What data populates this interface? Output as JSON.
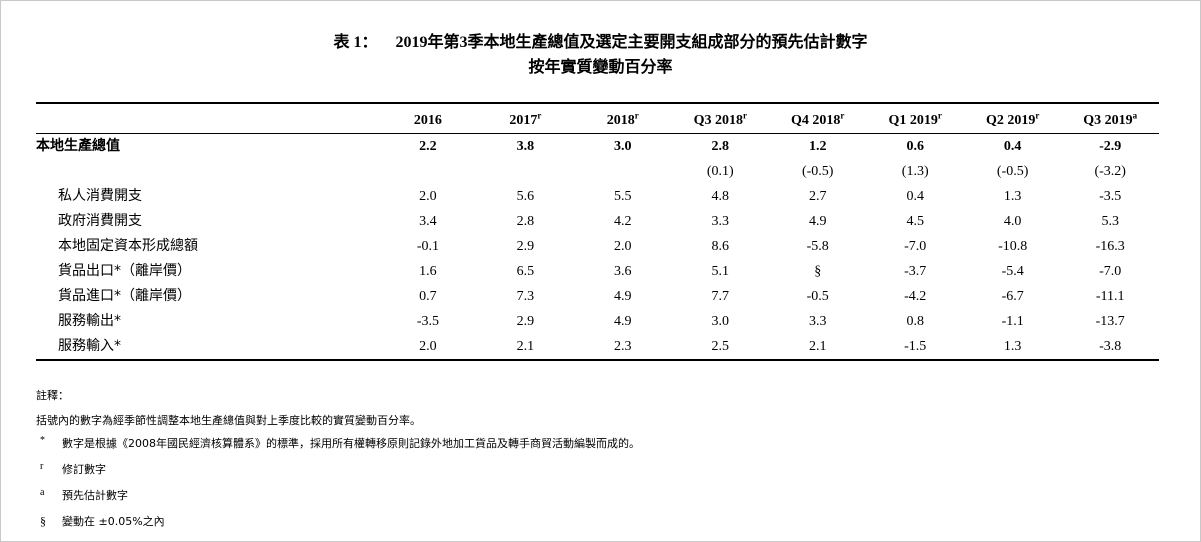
{
  "title": {
    "label": "表 1：",
    "line1": "2019年第3季本地生產總值及選定主要開支組成部分的預先估計數字",
    "line2": "按年實質變動百分率"
  },
  "table": {
    "headers": [
      {
        "text": "2016",
        "sup": ""
      },
      {
        "text": "2017",
        "sup": "r"
      },
      {
        "text": "2018",
        "sup": "r"
      },
      {
        "text": "Q3 2018",
        "sup": "r"
      },
      {
        "text": "Q4 2018",
        "sup": "r"
      },
      {
        "text": "Q1 2019",
        "sup": "r"
      },
      {
        "text": "Q2 2019",
        "sup": "r"
      },
      {
        "text": "Q3 2019",
        "sup": "a"
      }
    ],
    "gdp": {
      "label": "本地生產總值",
      "values": [
        "2.2",
        "3.8",
        "3.0",
        "2.8",
        "1.2",
        "0.6",
        "0.4",
        "-2.9"
      ],
      "qoq": [
        "",
        "",
        "",
        "(0.1)",
        "(-0.5)",
        "(1.3)",
        "(-0.5)",
        "(-3.2)"
      ]
    },
    "rows": [
      {
        "label": "私人消費開支",
        "values": [
          "2.0",
          "5.6",
          "5.5",
          "4.8",
          "2.7",
          "0.4",
          "1.3",
          "-3.5"
        ]
      },
      {
        "label": "政府消費開支",
        "values": [
          "3.4",
          "2.8",
          "4.2",
          "3.3",
          "4.9",
          "4.5",
          "4.0",
          "5.3"
        ]
      },
      {
        "label": "本地固定資本形成總額",
        "values": [
          "-0.1",
          "2.9",
          "2.0",
          "8.6",
          "-5.8",
          "-7.0",
          "-10.8",
          "-16.3"
        ]
      },
      {
        "label": "貨品出口*（離岸價）",
        "values": [
          "1.6",
          "6.5",
          "3.6",
          "5.1",
          "§",
          "-3.7",
          "-5.4",
          "-7.0"
        ]
      },
      {
        "label": "貨品進口*（離岸價）",
        "values": [
          "0.7",
          "7.3",
          "4.9",
          "7.7",
          "-0.5",
          "-4.2",
          "-6.7",
          "-11.1"
        ]
      },
      {
        "label": "服務輸出*",
        "values": [
          "-3.5",
          "2.9",
          "4.9",
          "3.0",
          "3.3",
          "0.8",
          "-1.1",
          "-13.7"
        ]
      },
      {
        "label": "服務輸入*",
        "values": [
          "2.0",
          "2.1",
          "2.3",
          "2.5",
          "2.1",
          "-1.5",
          "1.3",
          "-3.8"
        ]
      }
    ]
  },
  "notes": {
    "heading": "註釋：",
    "bracket_note": "括號內的數字為經季節性調整本地生產總值與對上季度比較的實質變動百分率。",
    "items": [
      {
        "symbol": "*",
        "text": "數字是根據《2008年國民經濟核算體系》的標準，採用所有權轉移原則記錄外地加工貨品及轉手商貿活動編製而成的。"
      },
      {
        "symbol": "r",
        "text": "修訂數字"
      },
      {
        "symbol": "a",
        "text": "預先估計數字"
      },
      {
        "symbol": "§",
        "text": "變動在 ±0.05%之內"
      }
    ]
  }
}
